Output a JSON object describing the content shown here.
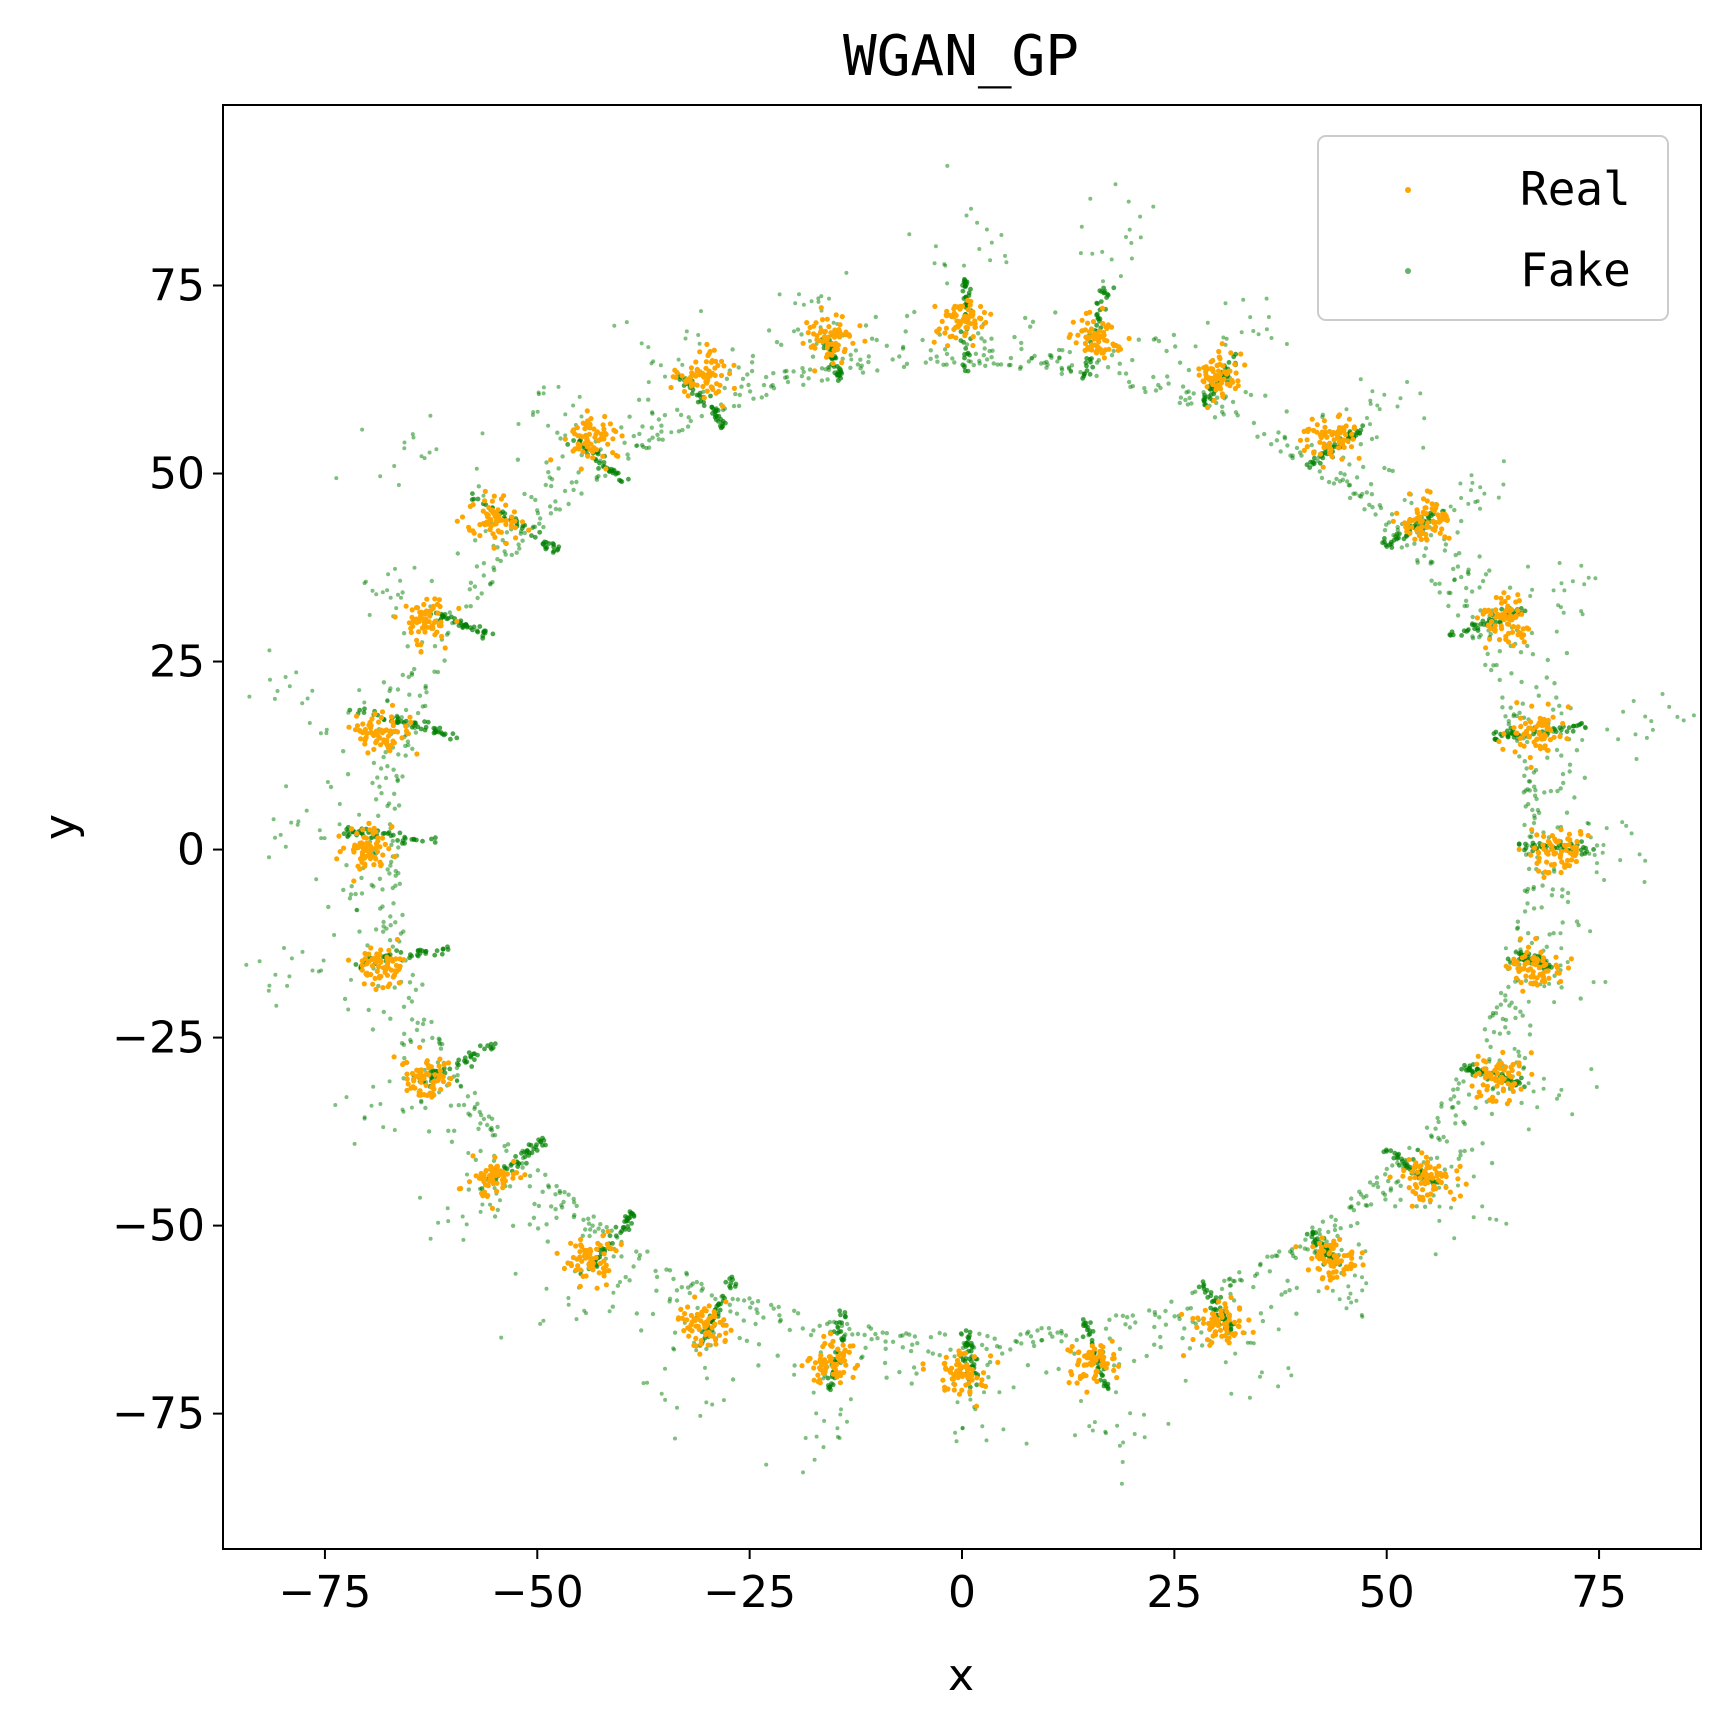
{
  "chart_data": {
    "type": "scatter",
    "title": "WGAN_GP",
    "xlabel": "x",
    "ylabel": "y",
    "xlim": [
      -87,
      87
    ],
    "ylim": [
      -93,
      99
    ],
    "xticks": [
      -75,
      -50,
      -25,
      0,
      25,
      50,
      75
    ],
    "yticks": [
      -75,
      -50,
      -25,
      0,
      25,
      50,
      75
    ],
    "xtick_labels": [
      "−75",
      "−50",
      "−25",
      "0",
      "25",
      "50",
      "75"
    ],
    "ytick_labels": [
      "−75",
      "−50",
      "−25",
      "0",
      "25",
      "50",
      "75"
    ],
    "grid": false,
    "legend_position": "top-right",
    "series": [
      {
        "name": "Real",
        "color": "#FFA500",
        "mode_centers": [
          [
            70.0,
            0.0
          ],
          [
            67.6,
            15.6
          ],
          [
            64.0,
            30.5
          ],
          [
            54.8,
            43.7
          ],
          [
            43.6,
            54.6
          ],
          [
            30.4,
            63.1
          ],
          [
            15.6,
            68.3
          ],
          [
            0.0,
            70.0
          ],
          [
            -15.6,
            68.3
          ],
          [
            -30.4,
            63.1
          ],
          [
            -43.6,
            54.6
          ],
          [
            -54.8,
            43.7
          ],
          [
            -63.0,
            30.5
          ],
          [
            -68.3,
            15.6
          ],
          [
            -70.0,
            0.0
          ],
          [
            -68.3,
            -15.6
          ],
          [
            -63.0,
            -30.5
          ],
          [
            -54.8,
            -43.7
          ],
          [
            -43.6,
            -54.6
          ],
          [
            -30.4,
            -63.1
          ],
          [
            -15.6,
            -68.3
          ],
          [
            0.0,
            -70.0
          ],
          [
            15.6,
            -68.3
          ],
          [
            30.4,
            -63.1
          ],
          [
            43.6,
            -54.6
          ],
          [
            54.8,
            -43.7
          ],
          [
            63.0,
            -30.5
          ],
          [
            67.6,
            -15.6
          ]
        ],
        "mode_spread": 1.5
      },
      {
        "name": "Fake",
        "color": "#008000",
        "ring_radius": 63,
        "spikes": [
          [
            [
              66.0,
              0.5
            ],
            [
              74.0,
              0.0
            ]
          ],
          [
            [
              62.5,
              15.0
            ],
            [
              74.0,
              16.5
            ]
          ],
          [
            [
              57.0,
              28.0
            ],
            [
              66.0,
              32.0
            ]
          ],
          [
            [
              50.0,
              40.5
            ],
            [
              56.0,
              45.0
            ]
          ],
          [
            [
              41.0,
              51.0
            ],
            [
              47.0,
              56.0
            ]
          ],
          [
            [
              28.5,
              59.0
            ],
            [
              32.0,
              65.5
            ]
          ],
          [
            [
              14.5,
              62.5
            ],
            [
              17.0,
              75.0
            ]
          ],
          [
            [
              0.5,
              63.5
            ],
            [
              0.5,
              76.0
            ]
          ],
          [
            [
              -14.0,
              62.0
            ],
            [
              -16.0,
              68.0
            ]
          ],
          [
            [
              -27.5,
              56.0
            ],
            [
              -33.0,
              63.0
            ]
          ],
          [
            [
              -40.0,
              49.0
            ],
            [
              -46.0,
              55.0
            ]
          ],
          [
            [
              -47.5,
              39.5
            ],
            [
              -58.0,
              47.5
            ]
          ],
          [
            [
              -56.0,
              28.5
            ],
            [
              -63.0,
              32.0
            ]
          ],
          [
            [
              -59.5,
              15.0
            ],
            [
              -72.0,
              19.0
            ]
          ],
          [
            [
              -62.0,
              1.0
            ],
            [
              -73.0,
              2.5
            ]
          ],
          [
            [
              -60.5,
              -13.0
            ],
            [
              -72.0,
              -15.5
            ]
          ],
          [
            [
              -55.0,
              -26.0
            ],
            [
              -64.0,
              -31.0
            ]
          ],
          [
            [
              -48.5,
              -38.0
            ],
            [
              -56.0,
              -44.5
            ]
          ],
          [
            [
              -38.5,
              -48.0
            ],
            [
              -44.0,
              -56.0
            ]
          ],
          [
            [
              -26.5,
              -56.5
            ],
            [
              -31.0,
              -66.0
            ]
          ],
          [
            [
              -14.0,
              -61.5
            ],
            [
              -15.5,
              -72.0
            ]
          ],
          [
            [
              0.5,
              -64.5
            ],
            [
              1.5,
              -71.5
            ]
          ],
          [
            [
              14.5,
              -62.5
            ],
            [
              17.0,
              -72.0
            ]
          ],
          [
            [
              28.0,
              -57.5
            ],
            [
              32.0,
              -64.0
            ]
          ],
          [
            [
              41.0,
              -51.0
            ],
            [
              44.0,
              -55.0
            ]
          ],
          [
            [
              50.0,
              -40.0
            ],
            [
              56.0,
              -44.5
            ]
          ],
          [
            [
              59.0,
              -29.0
            ],
            [
              66.0,
              -31.0
            ]
          ],
          [
            [
              65.5,
              -14.0
            ],
            [
              69.0,
              -15.5
            ]
          ]
        ]
      }
    ]
  }
}
